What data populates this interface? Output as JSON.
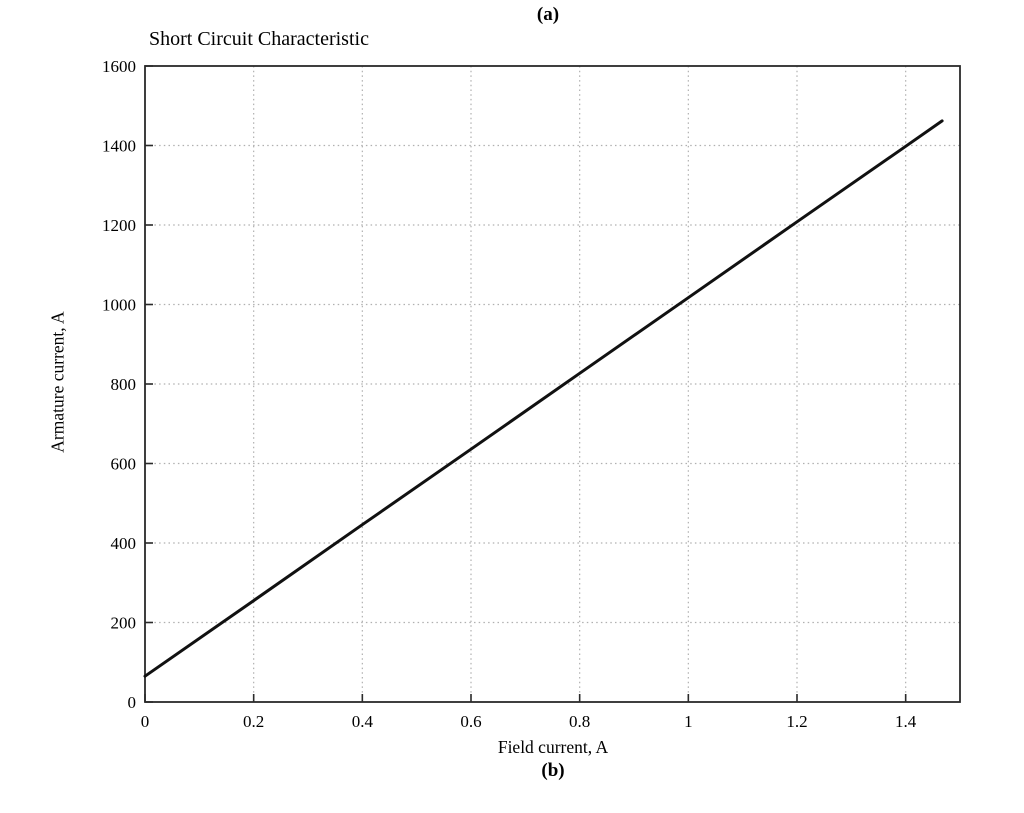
{
  "figure": {
    "panel_label_top": "(a)",
    "panel_label_bottom": "(b)",
    "title": "Short Circuit Characteristic",
    "xlabel": "Field current, A",
    "ylabel": "Armature current, A"
  },
  "chart_data": {
    "type": "line",
    "title": "Short Circuit Characteristic",
    "xlabel": "Field current, A",
    "ylabel": "Armature current, A",
    "xlim": [
      0,
      1.5
    ],
    "ylim": [
      0,
      1600
    ],
    "xticks": [
      0,
      0.2,
      0.4,
      0.6,
      0.8,
      1,
      1.2,
      1.4
    ],
    "xtick_labels": [
      "0",
      "0.2",
      "0.4",
      "0.6",
      "0.8",
      "1",
      "1.2",
      "1.4"
    ],
    "yticks": [
      0,
      200,
      400,
      600,
      800,
      1000,
      1200,
      1400,
      1600
    ],
    "ytick_labels": [
      "0",
      "200",
      "400",
      "600",
      "800",
      "1000",
      "1200",
      "1400",
      "1600"
    ],
    "grid": true,
    "grid_style": "dotted",
    "legend_position": "none",
    "series": [
      {
        "name": "short-circuit-characteristic",
        "color": "#111111",
        "x": [
          0,
          0.2,
          0.4,
          0.6,
          0.8,
          1.0,
          1.2,
          1.4,
          1.467
        ],
        "y": [
          65,
          255,
          446,
          636,
          827,
          1017,
          1208,
          1398,
          1462
        ]
      }
    ]
  },
  "colors": {
    "line": "#111111",
    "frame": "#2a2a2a",
    "grid": "#b0b0b0",
    "text": "#000000",
    "background": "#ffffff"
  }
}
